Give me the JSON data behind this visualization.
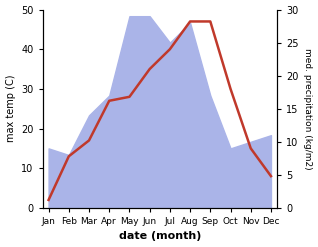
{
  "months": [
    "Jan",
    "Feb",
    "Mar",
    "Apr",
    "May",
    "Jun",
    "Jul",
    "Aug",
    "Sep",
    "Oct",
    "Nov",
    "Dec"
  ],
  "temp_max": [
    2,
    13,
    17,
    27,
    28,
    35,
    40,
    47,
    47,
    30,
    15,
    8
  ],
  "precip": [
    9,
    8,
    14,
    17,
    29,
    29,
    25,
    28,
    17,
    9,
    10,
    11
  ],
  "temp_color": "#c0392b",
  "precip_color": "#aab4e8",
  "temp_ylim": [
    0,
    50
  ],
  "precip_ylim": [
    0,
    30
  ],
  "temp_yticks": [
    0,
    10,
    20,
    30,
    40,
    50
  ],
  "precip_yticks": [
    0,
    5,
    10,
    15,
    20,
    25,
    30
  ],
  "ylabel_left": "max temp (C)",
  "ylabel_right": "med. precipitation (kg/m2)",
  "xlabel": "date (month)",
  "background_color": "#ffffff"
}
